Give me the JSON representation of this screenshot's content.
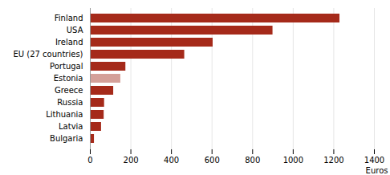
{
  "chart_data": {
    "type": "bar",
    "orientation": "horizontal",
    "categories": [
      "Finland",
      "USA",
      "Ireland",
      "EU (27 countries)",
      "Portugal",
      "Estonia",
      "Greece",
      "Russia",
      "Lithuania",
      "Latvia",
      "Bulgaria"
    ],
    "values": [
      1230,
      900,
      605,
      465,
      175,
      150,
      115,
      70,
      68,
      55,
      20
    ],
    "colors": [
      "#a52a1a",
      "#a52a1a",
      "#a52a1a",
      "#a52a1a",
      "#a52a1a",
      "#d4a099",
      "#a52a1a",
      "#a52a1a",
      "#a52a1a",
      "#a52a1a",
      "#a52a1a"
    ],
    "xlabel": "Euros",
    "xlim": [
      0,
      1400
    ],
    "xticks": [
      0,
      200,
      400,
      600,
      800,
      1000,
      1200,
      1400
    ],
    "grid": true
  }
}
